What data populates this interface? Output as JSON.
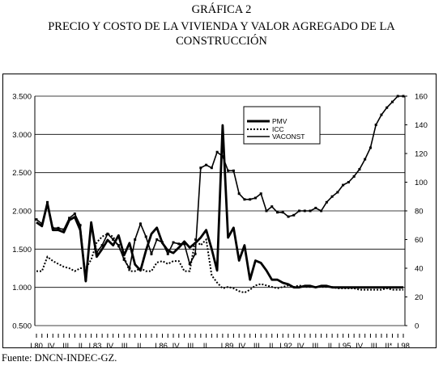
{
  "header": {
    "line1": "GRÁFICA 2",
    "line2": "PRECIO Y COSTO DE LA VIVIENDA Y VALOR AGREGADO DE LA",
    "line3": "CONSTRUCCIÓN"
  },
  "footer": {
    "source": "Fuente: DNCN-INDEC-GZ."
  },
  "chart_data": {
    "type": "line",
    "left_axis": {
      "min": 0.5,
      "max": 3.5,
      "ticks": [
        "0.500",
        "1.000",
        "1.500",
        "2.000",
        "2.500",
        "3.000",
        "3.500"
      ]
    },
    "right_axis": {
      "min": 0,
      "max": 160,
      "ticks": [
        "0",
        "20",
        "40",
        "60",
        "80",
        "100",
        "120",
        "140",
        "160"
      ]
    },
    "grid": "horizontal",
    "legend_position": "top-center",
    "x_labels": [
      {
        "i": 0,
        "text": "I.80"
      },
      {
        "i": 2,
        "text": "IV"
      },
      {
        "i": 4,
        "text": "III"
      },
      {
        "i": 6,
        "text": "II"
      },
      {
        "i": 8,
        "text": "I.83"
      },
      {
        "i": 10,
        "text": "IV"
      },
      {
        "i": 12,
        "text": "III"
      },
      {
        "i": 14,
        "text": "II"
      },
      {
        "i": 17,
        "text": "I.86"
      },
      {
        "i": 19,
        "text": "IV"
      },
      {
        "i": 21,
        "text": "III"
      },
      {
        "i": 23,
        "text": "II"
      },
      {
        "i": 26,
        "text": "I.89"
      },
      {
        "i": 28,
        "text": "IV"
      },
      {
        "i": 30,
        "text": "III"
      },
      {
        "i": 32,
        "text": "II"
      },
      {
        "i": 34,
        "text": "I.92"
      },
      {
        "i": 36,
        "text": "IV"
      },
      {
        "i": 38,
        "text": "III"
      },
      {
        "i": 40,
        "text": "II"
      },
      {
        "i": 42,
        "text": "I.95"
      },
      {
        "i": 44,
        "text": "IV"
      },
      {
        "i": 46,
        "text": "III"
      },
      {
        "i": 48,
        "text": "II*"
      },
      {
        "i": 50,
        "text": "I.98"
      }
    ],
    "series": [
      {
        "name": "PMV",
        "axis": "left",
        "style": "solid-thick",
        "values": [
          1.9,
          1.84,
          1.88,
          1.53,
          1.1,
          1.85,
          1.4,
          1.5,
          1.62,
          1.56,
          1.7,
          1.42,
          1.65,
          1.32,
          1.22,
          1.48,
          1.7,
          1.78,
          1.58,
          1.45,
          1.45,
          1.52,
          1.62,
          1.52,
          1.55,
          1.65,
          1.72,
          1.5,
          1.22,
          3.12,
          1.65,
          1.78,
          1.35,
          1.55,
          1.1,
          1.35,
          1.32,
          1.22,
          1.1,
          1.1,
          1.06,
          1.04,
          1.0,
          1.0,
          1.02,
          1.02,
          1.0,
          1.02,
          1.02,
          1.0,
          1.0,
          1.0,
          1.0,
          1.0,
          1.0,
          1.0,
          1.0,
          1.0,
          1.0,
          1.0,
          1.0,
          1.0,
          1.0,
          1.0,
          1.0,
          1.0,
          1.02,
          1.0
        ]
      },
      {
        "name": "ICC",
        "axis": "right",
        "style": "dotted",
        "values": [
          38,
          38,
          48,
          45,
          43,
          41,
          40,
          38,
          40,
          40,
          46,
          58,
          62,
          64,
          62,
          55,
          48,
          38,
          38,
          40,
          38,
          38,
          44,
          45,
          43,
          45,
          45,
          38,
          38,
          60,
          56,
          60,
          35,
          30,
          26,
          27,
          26,
          24,
          23,
          25,
          28,
          29,
          28,
          27,
          26,
          27,
          28,
          27,
          28,
          27,
          27,
          27,
          27,
          27,
          27,
          26,
          26,
          26,
          26,
          25,
          25,
          25,
          25,
          25,
          26,
          25,
          25,
          25
        ]
      },
      {
        "name": "VACONST",
        "axis": "right",
        "style": "solid-markers",
        "values": [
          74,
          71,
          86,
          68,
          68,
          67,
          75,
          78,
          70,
          32,
          70,
          51,
          56,
          64,
          60,
          56,
          46,
          40,
          60,
          71,
          62,
          50,
          60,
          58,
          50,
          58,
          57,
          57,
          43,
          50,
          110,
          112,
          110,
          121,
          118,
          108,
          108,
          92,
          88,
          88,
          89,
          92,
          80,
          83,
          79,
          79,
          76,
          77,
          80,
          80,
          80,
          82,
          80,
          86,
          90,
          93,
          98,
          100,
          104,
          109,
          116,
          124,
          140,
          147,
          152,
          156,
          160,
          160
        ]
      }
    ],
    "tracks": {
      "PMV": [
        [
          0,
          1.85
        ],
        [
          1,
          1.8
        ],
        [
          2,
          2.1
        ],
        [
          3,
          1.75
        ],
        [
          4,
          1.75
        ],
        [
          5,
          1.72
        ],
        [
          6,
          1.88
        ],
        [
          7,
          1.92
        ],
        [
          8,
          1.75
        ],
        [
          9,
          1.08
        ],
        [
          10,
          1.85
        ],
        [
          11,
          1.4
        ],
        [
          12,
          1.5
        ],
        [
          13,
          1.62
        ],
        [
          14,
          1.55
        ],
        [
          15,
          1.68
        ],
        [
          16,
          1.42
        ],
        [
          17,
          1.58
        ],
        [
          18,
          1.3
        ],
        [
          19,
          1.22
        ],
        [
          20,
          1.48
        ],
        [
          21,
          1.7
        ],
        [
          22,
          1.78
        ],
        [
          23,
          1.58
        ],
        [
          24,
          1.48
        ],
        [
          25,
          1.45
        ],
        [
          26,
          1.52
        ],
        [
          27,
          1.6
        ],
        [
          28,
          1.52
        ],
        [
          29,
          1.58
        ],
        [
          30,
          1.65
        ],
        [
          31,
          1.75
        ],
        [
          32,
          1.5
        ],
        [
          33,
          1.22
        ],
        [
          34,
          3.12
        ],
        [
          35,
          1.65
        ],
        [
          36,
          1.78
        ],
        [
          37,
          1.35
        ],
        [
          38,
          1.55
        ],
        [
          39,
          1.1
        ],
        [
          40,
          1.35
        ],
        [
          41,
          1.32
        ],
        [
          42,
          1.22
        ],
        [
          43,
          1.1
        ],
        [
          44,
          1.1
        ],
        [
          45,
          1.06
        ],
        [
          46,
          1.04
        ],
        [
          47,
          1.0
        ],
        [
          48,
          1.0
        ],
        [
          49,
          1.02
        ],
        [
          50,
          1.02
        ],
        [
          51,
          1.0
        ],
        [
          52,
          1.02
        ],
        [
          53,
          1.02
        ],
        [
          54,
          1.0
        ],
        [
          55,
          1.0
        ],
        [
          56,
          1.0
        ],
        [
          57,
          1.0
        ],
        [
          58,
          1.0
        ],
        [
          59,
          1.0
        ],
        [
          60,
          1.0
        ],
        [
          61,
          1.0
        ],
        [
          62,
          1.0
        ],
        [
          63,
          1.0
        ],
        [
          64,
          1.0
        ],
        [
          65,
          1.0
        ],
        [
          66,
          1.0
        ],
        [
          67,
          1.0
        ]
      ]
    }
  },
  "legend": {
    "labels": [
      "PMV",
      "ICC",
      "VACONST"
    ]
  }
}
